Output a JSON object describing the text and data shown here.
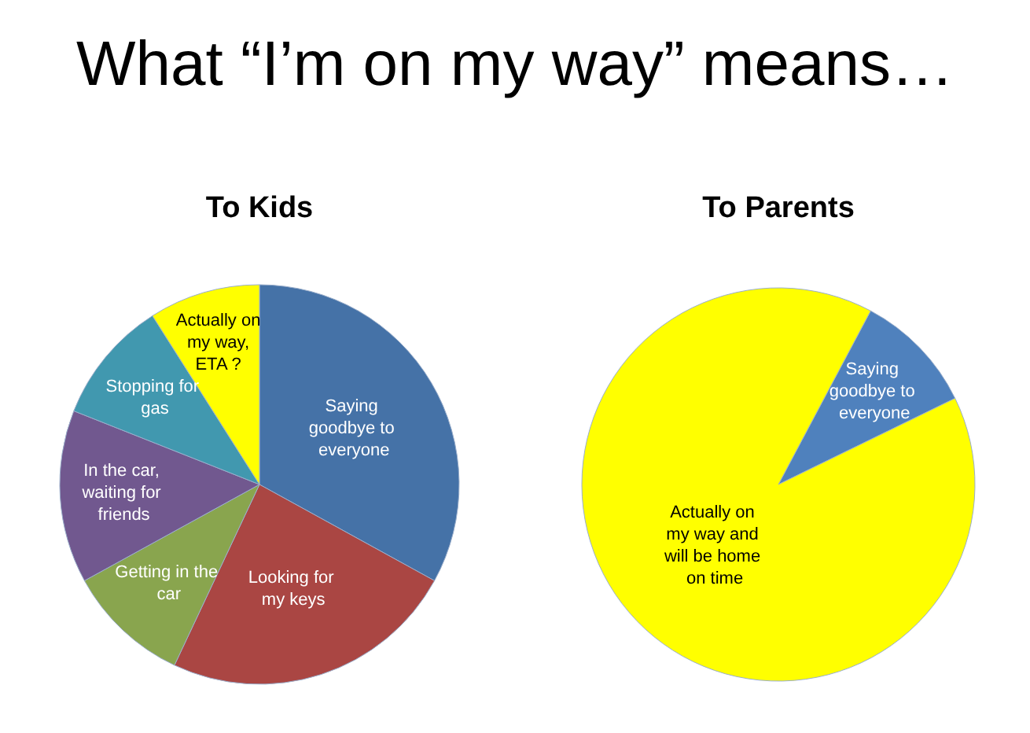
{
  "chart_data": [
    {
      "type": "other",
      "title": "What “I’m on my way” means…"
    },
    {
      "type": "pie",
      "title": "To Kids",
      "categories": [
        "Saying goodbye to everyone",
        "Looking for my keys",
        "Getting in the car",
        "In the car, waiting for friends",
        "Stopping for gas",
        "Actually on my way, ETA ?"
      ],
      "values": [
        33,
        24,
        10,
        14,
        10,
        9
      ],
      "colors": [
        "#4572a7",
        "#aa4643",
        "#89a54e",
        "#71588f",
        "#4198af",
        "#ffff00"
      ]
    },
    {
      "type": "pie",
      "title": "To Parents",
      "categories": [
        "Saying goodbye to everyone",
        "Actually on my way and will be home on time"
      ],
      "values": [
        10,
        90
      ],
      "colors": [
        "#4f81bd",
        "#ffff00"
      ]
    }
  ]
}
